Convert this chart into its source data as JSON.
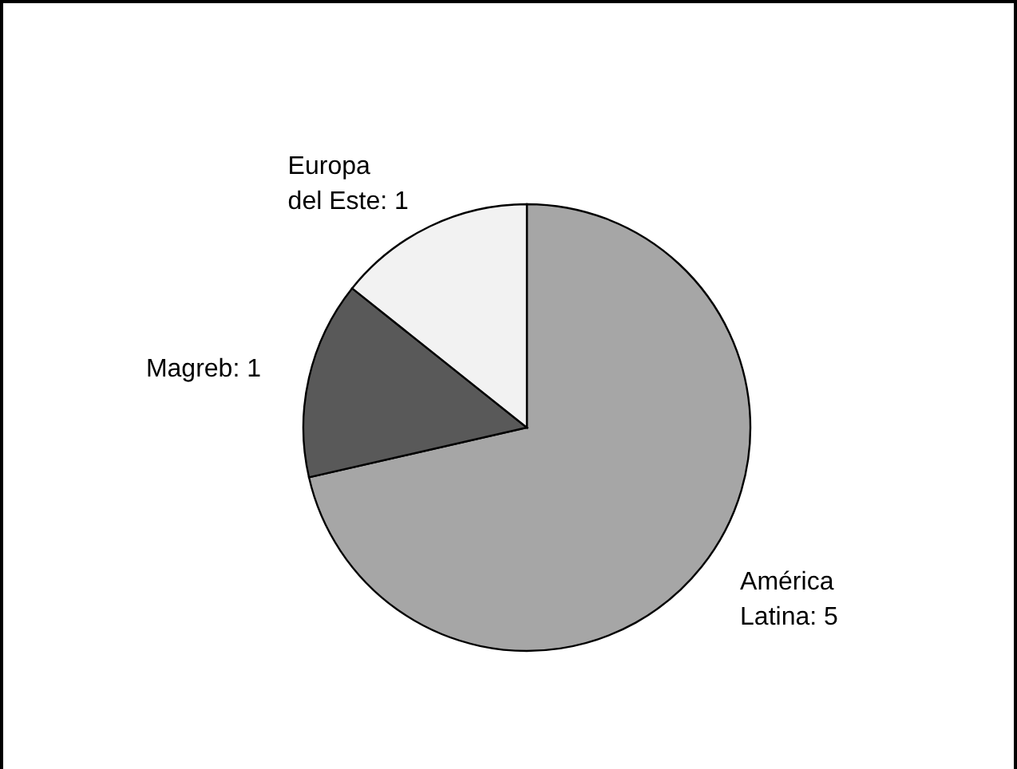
{
  "chart_data": {
    "type": "pie",
    "categories": [
      "América Latina",
      "Magreb",
      "Europa del Este"
    ],
    "values": [
      5,
      1,
      1
    ],
    "value_labels": [
      ": 5",
      ": 1",
      ": 1"
    ],
    "colors": [
      "#a6a6a6",
      "#595959",
      "#f2f2f2"
    ]
  }
}
